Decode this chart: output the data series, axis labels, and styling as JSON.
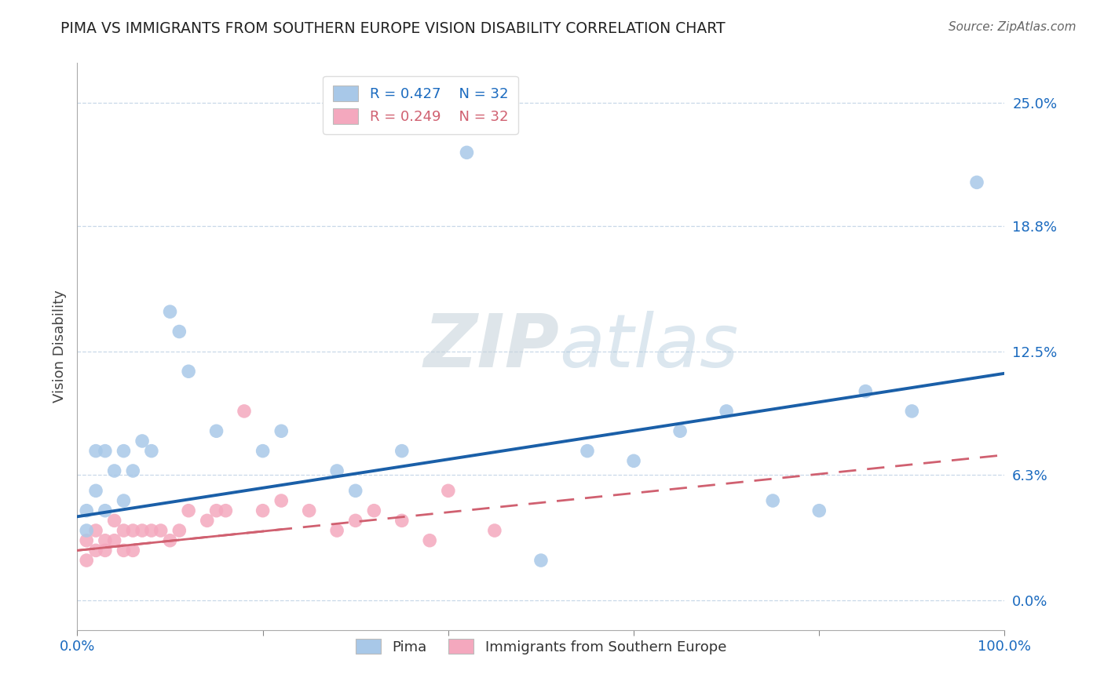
{
  "title": "PIMA VS IMMIGRANTS FROM SOUTHERN EUROPE VISION DISABILITY CORRELATION CHART",
  "source": "Source: ZipAtlas.com",
  "ylabel": "Vision Disability",
  "ytick_labels": [
    "0.0%",
    "6.3%",
    "12.5%",
    "18.8%",
    "25.0%"
  ],
  "ytick_values": [
    0.0,
    6.3,
    12.5,
    18.8,
    25.0
  ],
  "xlim": [
    0,
    100
  ],
  "ylim": [
    -1.5,
    27
  ],
  "legend_r_blue": "R = 0.427",
  "legend_n_blue": "N = 32",
  "legend_r_pink": "R = 0.249",
  "legend_n_pink": "N = 32",
  "legend_label_blue": "Pima",
  "legend_label_pink": "Immigrants from Southern Europe",
  "blue_color": "#a8c8e8",
  "pink_color": "#f4a8be",
  "blue_line_color": "#1a5fa8",
  "pink_line_color": "#d06070",
  "watermark_zip": "ZIP",
  "watermark_atlas": "atlas",
  "pima_x": [
    1,
    1,
    2,
    2,
    3,
    3,
    4,
    5,
    5,
    6,
    7,
    8,
    10,
    11,
    12,
    15,
    20,
    22,
    28,
    30,
    35,
    42,
    50,
    55,
    60,
    65,
    70,
    75,
    80,
    85,
    90,
    97
  ],
  "pima_y": [
    3.5,
    4.5,
    5.5,
    7.5,
    4.5,
    7.5,
    6.5,
    5.0,
    7.5,
    6.5,
    8.0,
    7.5,
    14.5,
    13.5,
    11.5,
    8.5,
    7.5,
    8.5,
    6.5,
    5.5,
    7.5,
    22.5,
    2.0,
    7.5,
    7.0,
    8.5,
    9.5,
    5.0,
    4.5,
    10.5,
    9.5,
    21.0
  ],
  "immig_x": [
    1,
    1,
    2,
    2,
    3,
    3,
    4,
    4,
    5,
    5,
    6,
    6,
    7,
    8,
    9,
    10,
    11,
    12,
    14,
    15,
    16,
    18,
    20,
    22,
    25,
    28,
    30,
    32,
    35,
    38,
    40,
    45
  ],
  "immig_y": [
    2.0,
    3.0,
    2.5,
    3.5,
    2.5,
    3.0,
    3.0,
    4.0,
    2.5,
    3.5,
    2.5,
    3.5,
    3.5,
    3.5,
    3.5,
    3.0,
    3.5,
    4.5,
    4.0,
    4.5,
    4.5,
    9.5,
    4.5,
    5.0,
    4.5,
    3.5,
    4.0,
    4.5,
    4.0,
    3.0,
    5.5,
    3.5
  ],
  "blue_intercept": 4.2,
  "blue_slope": 0.072,
  "pink_intercept": 2.5,
  "pink_slope": 0.048
}
